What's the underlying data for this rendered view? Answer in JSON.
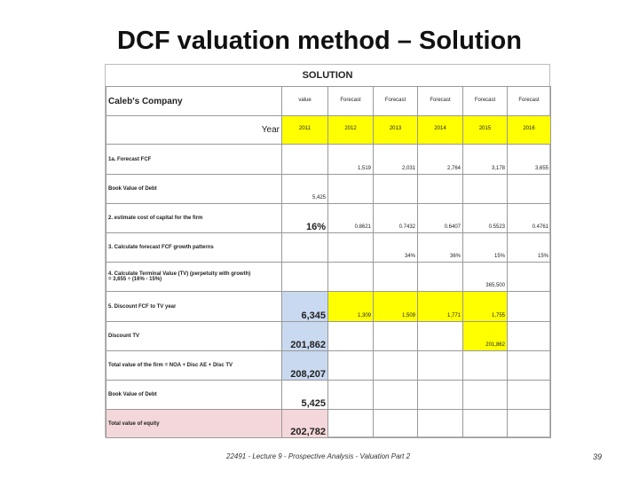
{
  "title": "DCF valuation method – Solution",
  "table": {
    "heading": "SOLUTION",
    "rows": [
      {
        "label": "Caleb's Company",
        "cells": [
          "value",
          "Forecast",
          "Forecast",
          "Forecast",
          "Forecast",
          "Forecast"
        ]
      },
      {
        "label": "Year",
        "cells": [
          "2011",
          "2012",
          "2013",
          "2014",
          "2015",
          "2016"
        ]
      },
      {
        "label": "1a. Forecast FCF",
        "cells": [
          null,
          "1,519",
          "2,031",
          "2,764",
          "3,178",
          "3,655"
        ]
      },
      {
        "label": "Book Value of Debt",
        "cells": [
          "5,425",
          null,
          null,
          null,
          null,
          null
        ]
      },
      {
        "label": "2. estimate cost of capital for the firm",
        "cells": [
          "16%",
          "0.8621",
          "0.7432",
          "0.6407",
          "0.5523",
          "0.4761"
        ]
      },
      {
        "label": "3. Calculate forecast FCF growth patterns",
        "cells": [
          null,
          null,
          "34%",
          "36%",
          "15%",
          "15%"
        ]
      },
      {
        "label": "4. Calculate Terminal Value (TV) (perpetuity with growth)",
        "note": "= 3,655 ÷ (16% - 15%)",
        "cells": [
          null,
          null,
          null,
          null,
          "365,500",
          null
        ]
      },
      {
        "label": "5. Discount FCF to TV year",
        "cells": [
          "6,345",
          "1,309",
          "1,509",
          "1,771",
          "1,755",
          null
        ]
      },
      {
        "label": "Discount TV",
        "cells": [
          "201,862",
          null,
          null,
          null,
          "201,862",
          null
        ]
      },
      {
        "label": "Total value of the firm = NOA + Disc AE + Disc TV",
        "cells": [
          "208,207",
          null,
          null,
          null,
          null,
          null
        ]
      },
      {
        "label": "Book Value of Debt",
        "cells": [
          "5,425",
          null,
          null,
          null,
          null,
          null
        ]
      },
      {
        "label": "Total value of equity",
        "cells": [
          "202,782",
          null,
          null,
          null,
          null,
          null
        ]
      }
    ]
  },
  "footer": {
    "text": "22491 - Lecture 9 - Prospective Analysis - Valuation Part 2",
    "page": "39"
  }
}
